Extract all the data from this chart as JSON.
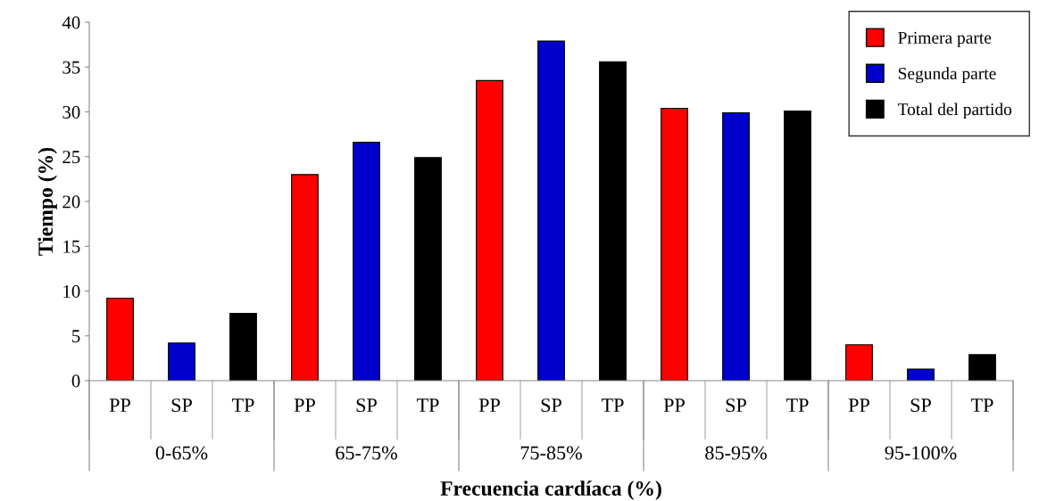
{
  "chart_data": {
    "type": "bar",
    "xlabel": "Frecuencia cardíaca (%)",
    "ylabel": "Tiempo (%)",
    "categories": [
      "PP",
      "SP",
      "TP",
      "PP",
      "SP",
      "TP",
      "PP",
      "SP",
      "TP",
      "PP",
      "SP",
      "TP",
      "PP",
      "SP",
      "TP"
    ],
    "series": [
      {
        "name": "Primera parte",
        "color": "#ff0000",
        "values": [
          9.2,
          null,
          null,
          23.0,
          null,
          null,
          33.5,
          null,
          null,
          30.4,
          null,
          null,
          4.0,
          null,
          null
        ]
      },
      {
        "name": "Segunda parte",
        "color": "#0000cc",
        "values": [
          null,
          4.2,
          null,
          null,
          26.6,
          null,
          null,
          37.9,
          null,
          null,
          29.9,
          null,
          null,
          1.3,
          null
        ]
      },
      {
        "name": "Total del partido",
        "color": "#000000",
        "values": [
          null,
          null,
          7.5,
          null,
          null,
          24.9,
          null,
          null,
          35.6,
          null,
          null,
          30.1,
          null,
          null,
          2.9
        ]
      }
    ],
    "annotations": [
      "0-65%",
      "65-75%",
      "75-85%",
      "85-95%",
      "95-100%"
    ],
    "ylim": [
      0,
      40
    ],
    "yticks": [
      0,
      5,
      10,
      15,
      20,
      25,
      30,
      35,
      40
    ],
    "grid": false,
    "legend": "top right"
  }
}
